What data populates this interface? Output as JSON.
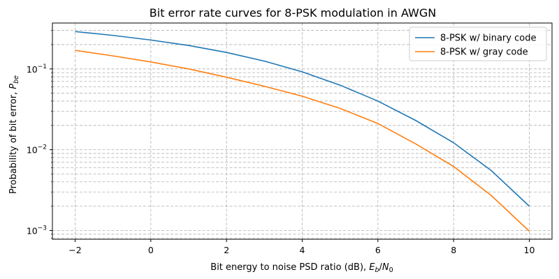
{
  "chart_data": {
    "type": "line",
    "title": "Bit error rate curves for 8-PSK modulation in AWGN",
    "xlabel": "Bit energy to noise PSD ratio (dB), ",
    "xlabel_math": {
      "base": "E",
      "sub": "b",
      "slash": "/",
      "base2": "N",
      "sub2": "0"
    },
    "ylabel": "Probability of bit error, ",
    "ylabel_math": {
      "base": "P",
      "sub": "be"
    },
    "yscale": "log",
    "xlim": [
      -2.6,
      10.6
    ],
    "ylim": [
      0.00078,
      0.37
    ],
    "grid": true,
    "grid_minor": true,
    "legend_position": "top-right",
    "x_ticks": [
      -2,
      0,
      2,
      4,
      6,
      8,
      10
    ],
    "x_tick_labels": [
      "−2",
      "0",
      "2",
      "4",
      "6",
      "8",
      "10"
    ],
    "y_ticks": [
      0.001,
      0.01,
      0.1
    ],
    "y_tick_labels": [
      {
        "base": "10",
        "exp": "−3"
      },
      {
        "base": "10",
        "exp": "−2"
      },
      {
        "base": "10",
        "exp": "−1"
      }
    ],
    "x": [
      -2,
      -1,
      0,
      1,
      2,
      3,
      4,
      5,
      6,
      7,
      8,
      9,
      10
    ],
    "series": [
      {
        "name": "8-PSK w/ binary code",
        "color": "#1f77b4",
        "values": [
          0.29,
          0.26,
          0.228,
          0.195,
          0.16,
          0.125,
          0.092,
          0.063,
          0.04,
          0.023,
          0.0122,
          0.0055,
          0.002
        ]
      },
      {
        "name": "8-PSK w/ gray code",
        "color": "#ff7f0e",
        "values": [
          0.17,
          0.145,
          0.122,
          0.1,
          0.079,
          0.061,
          0.046,
          0.0325,
          0.0211,
          0.0118,
          0.0062,
          0.0027,
          0.00098
        ]
      }
    ]
  }
}
